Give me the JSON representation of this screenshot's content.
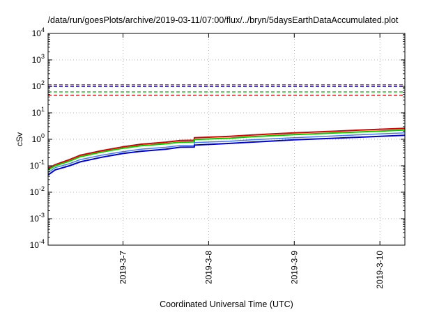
{
  "chart_data": {
    "type": "line",
    "title": "/data/run/goesPlots/archive/2019-03-11/07:00/flux/../bryn/5daysEarthDataAccumulated.plot",
    "xlabel": "Coordinated Universal Time (UTC)",
    "ylabel": "cSv",
    "x_range": [
      "2019-03-06 03:00",
      "2019-03-10 07:00"
    ],
    "ylim": [
      0.0001,
      10000
    ],
    "y_scale": "log",
    "y_ticks": [
      {
        "base": "10",
        "exp": "-4",
        "value": 0.0001
      },
      {
        "base": "10",
        "exp": "-3",
        "value": 0.001
      },
      {
        "base": "10",
        "exp": "-2",
        "value": 0.01
      },
      {
        "base": "10",
        "exp": "-1",
        "value": 0.1
      },
      {
        "base": "10",
        "exp": "0",
        "value": 1
      },
      {
        "base": "10",
        "exp": "1",
        "value": 10
      },
      {
        "base": "10",
        "exp": "2",
        "value": 100
      },
      {
        "base": "10",
        "exp": "3",
        "value": 1000
      },
      {
        "base": "10",
        "exp": "4",
        "value": 10000
      }
    ],
    "x_ticks": [
      {
        "label": "2019-3-7",
        "x": "2019-03-07 00:00"
      },
      {
        "label": "2019-3-8",
        "x": "2019-03-08 00:00"
      },
      {
        "label": "2019-3-9",
        "x": "2019-03-09 00:00"
      },
      {
        "label": "2019-3-10",
        "x": "2019-03-10 00:00"
      }
    ],
    "grid": true,
    "series": [
      {
        "color": "#dd0000",
        "line_width": 2,
        "x": [
          "2019-03-06 03:00",
          "2019-03-06 05:00",
          "2019-03-06 09:00",
          "2019-03-06 12:00",
          "2019-03-06 18:00",
          "2019-03-07 00:00",
          "2019-03-07 05:00",
          "2019-03-07 12:00",
          "2019-03-07 16:00",
          "2019-03-07 20:00",
          "2019-03-07 20:00",
          "2019-03-08 06:00",
          "2019-03-08 12:00",
          "2019-03-08 18:00",
          "2019-03-09 00:00",
          "2019-03-09 12:00",
          "2019-03-10 00:00",
          "2019-03-10 07:00"
        ],
        "y": [
          0.08,
          0.11,
          0.17,
          0.25,
          0.37,
          0.52,
          0.65,
          0.78,
          0.9,
          0.92,
          1.15,
          1.3,
          1.45,
          1.6,
          1.75,
          2.05,
          2.4,
          2.6
        ]
      },
      {
        "color": "#00cc00",
        "line_width": 2,
        "x": [
          "2019-03-06 03:00",
          "2019-03-06 05:00",
          "2019-03-06 09:00",
          "2019-03-06 12:00",
          "2019-03-06 18:00",
          "2019-03-07 00:00",
          "2019-03-07 05:00",
          "2019-03-07 12:00",
          "2019-03-07 16:00",
          "2019-03-07 20:00",
          "2019-03-07 20:00",
          "2019-03-08 06:00",
          "2019-03-08 12:00",
          "2019-03-08 18:00",
          "2019-03-09 00:00",
          "2019-03-09 12:00",
          "2019-03-10 00:00",
          "2019-03-10 07:00"
        ],
        "y": [
          0.07,
          0.1,
          0.15,
          0.22,
          0.33,
          0.46,
          0.57,
          0.68,
          0.78,
          0.8,
          0.98,
          1.1,
          1.25,
          1.38,
          1.5,
          1.75,
          2.05,
          2.25
        ]
      },
      {
        "color": "#4477ff",
        "line_width": 1.5,
        "x": [
          "2019-03-06 03:00",
          "2019-03-06 05:00",
          "2019-03-06 09:00",
          "2019-03-06 12:00",
          "2019-03-06 18:00",
          "2019-03-07 00:00",
          "2019-03-07 05:00",
          "2019-03-07 12:00",
          "2019-03-07 16:00",
          "2019-03-07 20:00",
          "2019-03-07 20:00",
          "2019-03-08 06:00",
          "2019-03-08 12:00",
          "2019-03-08 18:00",
          "2019-03-09 00:00",
          "2019-03-09 12:00",
          "2019-03-10 00:00",
          "2019-03-10 07:00"
        ],
        "y": [
          0.055,
          0.085,
          0.12,
          0.17,
          0.25,
          0.34,
          0.42,
          0.5,
          0.58,
          0.59,
          0.75,
          0.85,
          0.95,
          1.05,
          1.15,
          1.35,
          1.6,
          1.75
        ]
      },
      {
        "color": "#0000cc",
        "line_width": 2,
        "x": [
          "2019-03-06 03:00",
          "2019-03-06 05:00",
          "2019-03-06 09:00",
          "2019-03-06 12:00",
          "2019-03-06 18:00",
          "2019-03-07 00:00",
          "2019-03-07 05:00",
          "2019-03-07 12:00",
          "2019-03-07 16:00",
          "2019-03-07 20:00",
          "2019-03-07 20:00",
          "2019-03-08 06:00",
          "2019-03-08 12:00",
          "2019-03-08 18:00",
          "2019-03-09 00:00",
          "2019-03-09 12:00",
          "2019-03-10 00:00",
          "2019-03-10 07:00"
        ],
        "y": [
          0.045,
          0.07,
          0.1,
          0.14,
          0.21,
          0.29,
          0.35,
          0.42,
          0.5,
          0.51,
          0.6,
          0.7,
          0.78,
          0.86,
          0.95,
          1.1,
          1.3,
          1.42
        ]
      }
    ],
    "reference_lines": [
      {
        "y": 115,
        "color": "#9933cc",
        "style": "dashed"
      },
      {
        "y": 100,
        "color": "#0000cc",
        "style": "dashed"
      },
      {
        "y": 62,
        "color": "#00cc00",
        "style": "dashed"
      },
      {
        "y": 46,
        "color": "#dd0000",
        "style": "dashed"
      }
    ]
  }
}
